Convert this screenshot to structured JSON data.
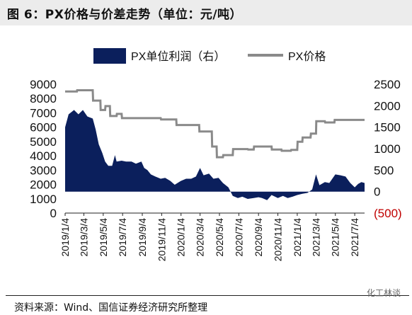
{
  "title": "图 6：PX价格与价差走势（单位：元/吨）",
  "source": "资料来源：Wind、国信证券经济研究所整理",
  "watermark": "化工林谈",
  "colors": {
    "area": "#0b1f5c",
    "line": "#8a8a8a",
    "negative_tick": "#c00000"
  },
  "chart_data": {
    "type": "area",
    "legend": {
      "placement": "top",
      "entries": [
        "PX单位利润（右）",
        "PX价格"
      ]
    },
    "x_tick_labels": [
      "2019/1/4",
      "2019/3/4",
      "2019/5/4",
      "2019/7/4",
      "2019/9/4",
      "2019/11/4",
      "2020/1/4",
      "2020/3/4",
      "2020/5/4",
      "2020/7/4",
      "2020/9/4",
      "2020/11/4",
      "2021/1/4",
      "2021/3/4",
      "2021/5/4",
      "2021/7/4"
    ],
    "x_range": [
      "2019/1/4",
      "2021/8/4"
    ],
    "left_axis": {
      "ticks": [
        "0",
        "1000",
        "2000",
        "3000",
        "4000",
        "5000",
        "6000",
        "7000",
        "8000",
        "9000"
      ],
      "ylim": [
        0,
        9000
      ]
    },
    "right_axis": {
      "ticks": [
        "(500)",
        "0",
        "500",
        "1000",
        "1500",
        "2000",
        "2500"
      ],
      "ylim": [
        -500,
        2500
      ]
    },
    "series": [
      {
        "name": "PX单位利润（右）",
        "axis": "right",
        "style": "area",
        "points": [
          [
            "2019/1/4",
            1500
          ],
          [
            "2019/1/15",
            1800
          ],
          [
            "2019/2/1",
            1900
          ],
          [
            "2019/2/15",
            1800
          ],
          [
            "2019/3/1",
            1900
          ],
          [
            "2019/3/15",
            1750
          ],
          [
            "2019/4/1",
            1700
          ],
          [
            "2019/4/10",
            1450
          ],
          [
            "2019/4/20",
            1100
          ],
          [
            "2019/5/1",
            900
          ],
          [
            "2019/5/10",
            700
          ],
          [
            "2019/5/20",
            600
          ],
          [
            "2019/6/1",
            600
          ],
          [
            "2019/6/10",
            850
          ],
          [
            "2019/6/15",
            700
          ],
          [
            "2019/7/1",
            720
          ],
          [
            "2019/7/15",
            700
          ],
          [
            "2019/8/1",
            700
          ],
          [
            "2019/8/15",
            650
          ],
          [
            "2019/9/1",
            700
          ],
          [
            "2019/9/10",
            550
          ],
          [
            "2019/9/20",
            500
          ],
          [
            "2019/10/1",
            400
          ],
          [
            "2019/10/15",
            350
          ],
          [
            "2019/11/1",
            300
          ],
          [
            "2019/11/15",
            320
          ],
          [
            "2019/12/1",
            250
          ],
          [
            "2019/12/15",
            160
          ],
          [
            "2020/1/4",
            250
          ],
          [
            "2020/1/20",
            300
          ],
          [
            "2020/2/5",
            300
          ],
          [
            "2020/2/20",
            350
          ],
          [
            "2020/3/4",
            550
          ],
          [
            "2020/3/15",
            380
          ],
          [
            "2020/4/1",
            420
          ],
          [
            "2020/4/15",
            300
          ],
          [
            "2020/5/1",
            320
          ],
          [
            "2020/5/15",
            200
          ],
          [
            "2020/6/1",
            100
          ],
          [
            "2020/6/15",
            -100
          ],
          [
            "2020/7/1",
            -150
          ],
          [
            "2020/7/15",
            -120
          ],
          [
            "2020/8/1",
            -170
          ],
          [
            "2020/8/20",
            -150
          ],
          [
            "2020/9/4",
            -130
          ],
          [
            "2020/9/15",
            -150
          ],
          [
            "2020/10/1",
            -200
          ],
          [
            "2020/10/15",
            -80
          ],
          [
            "2020/11/4",
            -150
          ],
          [
            "2020/11/20",
            -100
          ],
          [
            "2020/12/5",
            -150
          ],
          [
            "2020/12/20",
            -120
          ],
          [
            "2021/1/4",
            -80
          ],
          [
            "2021/1/20",
            -50
          ],
          [
            "2021/2/5",
            -30
          ],
          [
            "2021/2/20",
            50
          ],
          [
            "2021/3/4",
            400
          ],
          [
            "2021/3/15",
            150
          ],
          [
            "2021/4/1",
            220
          ],
          [
            "2021/4/15",
            200
          ],
          [
            "2021/5/4",
            400
          ],
          [
            "2021/5/20",
            380
          ],
          [
            "2021/6/5",
            350
          ],
          [
            "2021/6/20",
            200
          ],
          [
            "2021/7/4",
            100
          ],
          [
            "2021/7/15",
            180
          ],
          [
            "2021/7/25",
            220
          ],
          [
            "2021/8/4",
            200
          ]
        ]
      },
      {
        "name": "PX价格",
        "axis": "right",
        "style": "line",
        "points": [
          [
            "2019/1/4",
            2330
          ],
          [
            "2019/2/10",
            2330
          ],
          [
            "2019/2/11",
            2360
          ],
          [
            "2019/4/1",
            2360
          ],
          [
            "2019/4/2",
            2120
          ],
          [
            "2019/4/25",
            2120
          ],
          [
            "2019/4/26",
            1900
          ],
          [
            "2019/5/10",
            1900
          ],
          [
            "2019/5/11",
            1990
          ],
          [
            "2019/5/25",
            1990
          ],
          [
            "2019/5/26",
            1760
          ],
          [
            "2019/6/15",
            1760
          ],
          [
            "2019/6/16",
            1810
          ],
          [
            "2019/7/1",
            1810
          ],
          [
            "2019/7/2",
            1710
          ],
          [
            "2019/11/1",
            1710
          ],
          [
            "2019/11/2",
            1680
          ],
          [
            "2019/12/20",
            1680
          ],
          [
            "2019/12/21",
            1550
          ],
          [
            "2020/3/1",
            1550
          ],
          [
            "2020/3/2",
            1400
          ],
          [
            "2020/4/10",
            1400
          ],
          [
            "2020/4/11",
            1050
          ],
          [
            "2020/4/25",
            1050
          ],
          [
            "2020/4/26",
            800
          ],
          [
            "2020/5/15",
            800
          ],
          [
            "2020/5/16",
            850
          ],
          [
            "2020/6/15",
            850
          ],
          [
            "2020/6/16",
            990
          ],
          [
            "2020/8/1",
            990
          ],
          [
            "2020/8/2",
            980
          ],
          [
            "2020/8/20",
            980
          ],
          [
            "2020/8/21",
            1050
          ],
          [
            "2020/10/15",
            1050
          ],
          [
            "2020/10/16",
            980
          ],
          [
            "2020/11/15",
            980
          ],
          [
            "2020/11/16",
            950
          ],
          [
            "2020/12/15",
            950
          ],
          [
            "2020/12/16",
            970
          ],
          [
            "2021/1/4",
            970
          ],
          [
            "2021/1/5",
            1160
          ],
          [
            "2021/1/20",
            1160
          ],
          [
            "2021/1/21",
            1260
          ],
          [
            "2021/2/15",
            1260
          ],
          [
            "2021/2/16",
            1350
          ],
          [
            "2021/3/4",
            1350
          ],
          [
            "2021/3/5",
            1640
          ],
          [
            "2021/4/1",
            1640
          ],
          [
            "2021/4/2",
            1610
          ],
          [
            "2021/5/1",
            1610
          ],
          [
            "2021/5/2",
            1670
          ],
          [
            "2021/8/4",
            1670
          ]
        ]
      }
    ]
  }
}
